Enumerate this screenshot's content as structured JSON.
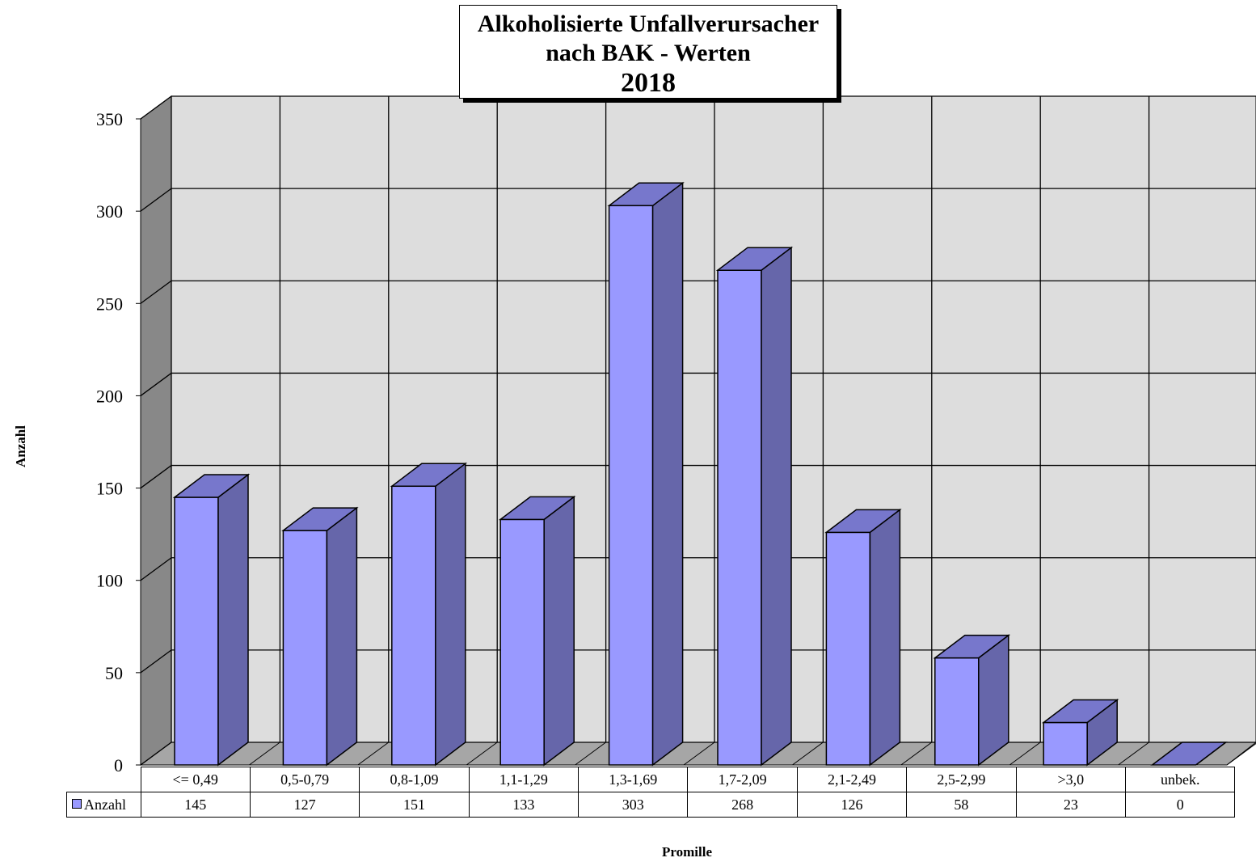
{
  "chart_data": {
    "type": "bar",
    "title": [
      "Alkoholisierte Unfallverursacher",
      "nach BAK - Werten",
      "2018"
    ],
    "xlabel": "Promille",
    "ylabel": "Anzahl",
    "ylim": [
      0,
      350
    ],
    "yticks": [
      0,
      50,
      100,
      150,
      200,
      250,
      300,
      350
    ],
    "categories": [
      "<= 0,49",
      "0,5-0,79",
      "0,8-1,09",
      "1,1-1,29",
      "1,3-1,69",
      "1,7-2,09",
      "2,1-2,49",
      "2,5-2,99",
      ">3,0",
      "unbek."
    ],
    "series": [
      {
        "name": "Anzahl",
        "values": [
          145,
          127,
          151,
          133,
          303,
          268,
          126,
          58,
          23,
          0
        ]
      }
    ],
    "grid": true,
    "legend": "data-table-left",
    "colors": {
      "bar_front": "#9999ff",
      "bar_side": "#6666aa",
      "bar_top": "#7777cc",
      "wall": "#dddddd",
      "side_wall": "#888888",
      "floor": "#a6a6a6"
    }
  }
}
